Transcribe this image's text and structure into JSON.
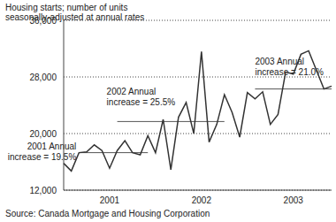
{
  "chart_data": {
    "type": "line",
    "title": [
      "Housing starts; number of units",
      "seasonally-adjusted at annual rates"
    ],
    "source": "Source: Canada Mortgage and Housing Corporation",
    "categories": [
      null,
      null,
      null,
      null,
      null,
      null,
      "2001",
      null,
      null,
      null,
      null,
      null,
      null,
      null,
      null,
      null,
      null,
      null,
      "2002",
      null,
      null,
      null,
      null,
      null,
      null,
      null,
      null,
      null,
      null,
      null,
      "2003",
      null,
      null,
      null,
      null,
      null
    ],
    "values": [
      15800,
      14700,
      17300,
      17400,
      18400,
      17600,
      15100,
      17600,
      19000,
      17300,
      17000,
      19700,
      17300,
      22000,
      14900,
      22300,
      24400,
      20000,
      31600,
      18800,
      21300,
      25500,
      23000,
      19500,
      25800,
      24900,
      25900,
      21300,
      22700,
      28700,
      28400,
      31200,
      31700,
      29000,
      26300,
      26700
    ],
    "color": "#333333",
    "ylim": [
      12000,
      36000
    ],
    "yticks": [
      {
        "value": 12000,
        "label": "12,000"
      },
      {
        "value": 20000,
        "label": "20,000"
      },
      {
        "value": 28000,
        "label": "28,000"
      },
      {
        "value": 36000,
        "label": "36,000"
      }
    ],
    "grid": true,
    "reference_lines": [
      {
        "label": [
          "2001 Annual",
          "increase = 19.5%"
        ],
        "value": 17300,
        "x": [
          2,
          11
        ]
      },
      {
        "label": [
          "2002 Annual",
          "increase = 25.5%"
        ],
        "value": 21700,
        "x": [
          7,
          21
        ]
      },
      {
        "label": [
          "2003 Annual",
          "increase = 21.0%"
        ],
        "value": 26300,
        "x": [
          25,
          35
        ]
      }
    ]
  }
}
